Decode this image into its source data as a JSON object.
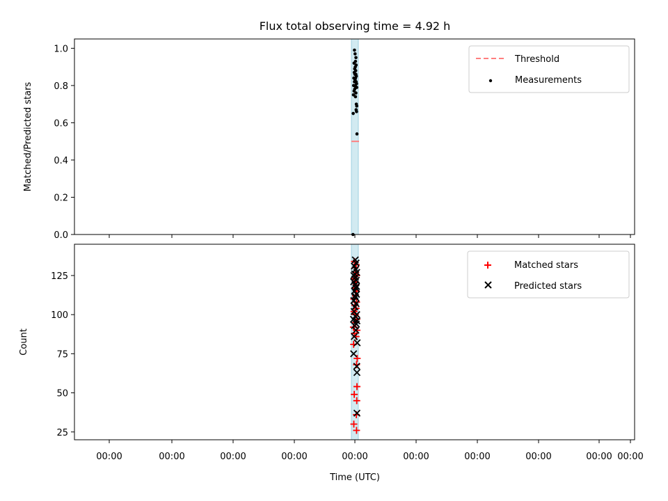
{
  "chart_data": {
    "title": "Flux total observing time = 4.92 h",
    "xlabel": "Time (UTC)",
    "x_tick_labels": [
      "00:00",
      "00:00",
      "00:00",
      "00:00",
      "00:00",
      "00:00",
      "00:00",
      "00:00",
      "00:00",
      "00:00"
    ],
    "band_color": "#add8e6",
    "panels": [
      {
        "id": "ratio",
        "type": "scatter",
        "ylabel": "Matched/Predicted stars",
        "ylim": [
          0,
          1.05
        ],
        "yticks": [
          0.0,
          0.2,
          0.4,
          0.6,
          0.8,
          1.0
        ],
        "ytick_labels": [
          "0.0",
          "0.2",
          "0.4",
          "0.6",
          "0.8",
          "1.0"
        ],
        "legend_position": "upper right",
        "threshold": {
          "name": "Threshold",
          "value": 0.5,
          "color": "#ff7f7f",
          "style": "dashed"
        },
        "series": [
          {
            "name": "Measurements",
            "marker": "dot",
            "color": "#000000",
            "points": [
              [
                -0.02,
                0.99
              ],
              [
                0.01,
                0.97
              ],
              [
                0.05,
                0.95
              ],
              [
                0.03,
                0.93
              ],
              [
                -0.04,
                0.92
              ],
              [
                0.06,
                0.91
              ],
              [
                0.02,
                0.9
              ],
              [
                -0.01,
                0.89
              ],
              [
                0.04,
                0.88
              ],
              [
                -0.03,
                0.87
              ],
              [
                0.05,
                0.86
              ],
              [
                0.0,
                0.86
              ],
              [
                0.07,
                0.85
              ],
              [
                -0.05,
                0.84
              ],
              [
                0.03,
                0.84
              ],
              [
                0.01,
                0.83
              ],
              [
                -0.02,
                0.82
              ],
              [
                0.06,
                0.82
              ],
              [
                0.08,
                0.81
              ],
              [
                -0.06,
                0.8
              ],
              [
                0.02,
                0.8
              ],
              [
                0.04,
                0.79
              ],
              [
                -0.01,
                0.78
              ],
              [
                0.09,
                0.79
              ],
              [
                -0.04,
                0.77
              ],
              [
                0.05,
                0.76
              ],
              [
                -0.07,
                0.75
              ],
              [
                0.03,
                0.74
              ],
              [
                0.07,
                0.7
              ],
              [
                0.09,
                0.69
              ],
              [
                0.06,
                0.67
              ],
              [
                0.08,
                0.66
              ],
              [
                -0.08,
                0.65
              ],
              [
                0.1,
                0.54
              ],
              [
                -0.09,
                0.0
              ]
            ]
          }
        ]
      },
      {
        "id": "count",
        "type": "scatter",
        "ylabel": "Count",
        "ylim": [
          20,
          145
        ],
        "yticks": [
          25,
          50,
          75,
          100,
          125
        ],
        "ytick_labels": [
          "25",
          "50",
          "75",
          "100",
          "125"
        ],
        "legend_position": "upper right",
        "series": [
          {
            "name": "Matched stars",
            "marker": "plus",
            "color": "#ff0000",
            "points": [
              [
                -0.05,
                30
              ],
              [
                0.08,
                26
              ],
              [
                -0.03,
                49
              ],
              [
                0.09,
                45
              ],
              [
                0.1,
                54
              ],
              [
                0.07,
                36
              ],
              [
                0.11,
                72
              ],
              [
                0.08,
                68
              ],
              [
                -0.06,
                81
              ],
              [
                0.06,
                86
              ],
              [
                -0.02,
                88
              ],
              [
                0.1,
                90
              ],
              [
                -0.07,
                92
              ],
              [
                0.04,
                95
              ],
              [
                0.09,
                97
              ],
              [
                0.02,
                100
              ],
              [
                -0.04,
                102
              ],
              [
                0.06,
                104
              ],
              [
                0.0,
                106
              ],
              [
                0.08,
                108
              ],
              [
                -0.05,
                110
              ],
              [
                0.03,
                112
              ],
              [
                0.07,
                115
              ],
              [
                -0.01,
                117
              ],
              [
                0.05,
                119
              ],
              [
                0.02,
                121
              ],
              [
                -0.03,
                123
              ],
              [
                0.08,
                125
              ],
              [
                0.04,
                127
              ],
              [
                0.01,
                130
              ],
              [
                0.06,
                132
              ],
              [
                -0.02,
                134
              ]
            ]
          },
          {
            "name": "Predicted stars",
            "marker": "x",
            "color": "#000000",
            "points": [
              [
                -0.06,
                75
              ],
              [
                0.1,
                63
              ],
              [
                0.09,
                67
              ],
              [
                0.11,
                82
              ],
              [
                0.1,
                37
              ],
              [
                -0.03,
                86
              ],
              [
                0.05,
                90
              ],
              [
                -0.07,
                97
              ],
              [
                0.07,
                94
              ],
              [
                0.02,
                99
              ],
              [
                -0.04,
                102
              ],
              [
                0.09,
                100
              ],
              [
                0.0,
                105
              ],
              [
                0.06,
                107
              ],
              [
                -0.05,
                109
              ],
              [
                0.03,
                111
              ],
              [
                0.08,
                113
              ],
              [
                -0.02,
                115
              ],
              [
                0.05,
                117
              ],
              [
                0.01,
                119
              ],
              [
                -0.06,
                121
              ],
              [
                0.07,
                122
              ],
              [
                0.03,
                124
              ],
              [
                -0.01,
                126
              ],
              [
                0.09,
                127
              ],
              [
                0.04,
                129
              ],
              [
                -0.03,
                131
              ],
              [
                0.06,
                133
              ],
              [
                0.02,
                135
              ],
              [
                -0.05,
                125
              ],
              [
                0.08,
                118
              ],
              [
                0.0,
                112
              ],
              [
                0.1,
                96
              ],
              [
                -0.02,
                93
              ]
            ]
          }
        ]
      }
    ]
  }
}
